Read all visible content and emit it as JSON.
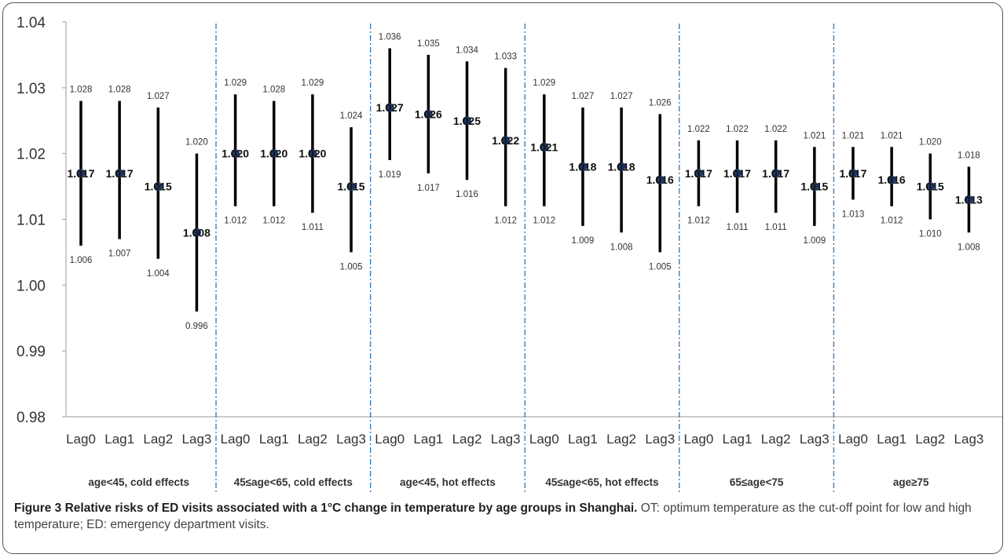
{
  "chart_data": {
    "type": "errorbar",
    "ylim": [
      0.98,
      1.04
    ],
    "yticks": [
      0.98,
      0.99,
      1.0,
      1.01,
      1.02,
      1.03,
      1.04
    ],
    "ytick_labels": [
      "0.98",
      "0.99",
      "1.00",
      "1.01",
      "1.02",
      "1.03",
      "1.04"
    ],
    "groups": [
      {
        "label": "age<45, cold effects",
        "items": [
          {
            "lag": "Lag0",
            "rr": 1.017,
            "lower": 1.006,
            "upper": 1.028,
            "rr_label": "1.017",
            "lower_label": "1.006",
            "upper_label": "1.028"
          },
          {
            "lag": "Lag1",
            "rr": 1.017,
            "lower": 1.007,
            "upper": 1.028,
            "rr_label": "1.017",
            "lower_label": "1.007",
            "upper_label": "1.028"
          },
          {
            "lag": "Lag2",
            "rr": 1.015,
            "lower": 1.004,
            "upper": 1.027,
            "rr_label": "1.015",
            "lower_label": "1.004",
            "upper_label": "1.027"
          },
          {
            "lag": "Lag3",
            "rr": 1.008,
            "lower": 0.996,
            "upper": 1.02,
            "rr_label": "1.008",
            "lower_label": "0.996",
            "upper_label": "1.020"
          }
        ]
      },
      {
        "label": "45≤age<65, cold effects",
        "items": [
          {
            "lag": "Lag0",
            "rr": 1.02,
            "lower": 1.012,
            "upper": 1.029,
            "rr_label": "1.020",
            "lower_label": "1.012",
            "upper_label": "1.029"
          },
          {
            "lag": "Lag1",
            "rr": 1.02,
            "lower": 1.012,
            "upper": 1.028,
            "rr_label": "1.020",
            "lower_label": "1.012",
            "upper_label": "1.028"
          },
          {
            "lag": "Lag2",
            "rr": 1.02,
            "lower": 1.011,
            "upper": 1.029,
            "rr_label": "1.020",
            "lower_label": "1.011",
            "upper_label": "1.029"
          },
          {
            "lag": "Lag3",
            "rr": 1.015,
            "lower": 1.005,
            "upper": 1.024,
            "rr_label": "1.015",
            "lower_label": "1.005",
            "upper_label": "1.024"
          }
        ]
      },
      {
        "label": "age<45, hot effects",
        "items": [
          {
            "lag": "Lag0",
            "rr": 1.027,
            "lower": 1.019,
            "upper": 1.036,
            "rr_label": "1.027",
            "lower_label": "1.019",
            "upper_label": "1.036"
          },
          {
            "lag": "Lag1",
            "rr": 1.026,
            "lower": 1.017,
            "upper": 1.035,
            "rr_label": "1.026",
            "lower_label": "1.017",
            "upper_label": "1.035"
          },
          {
            "lag": "Lag2",
            "rr": 1.025,
            "lower": 1.016,
            "upper": 1.034,
            "rr_label": "1.025",
            "lower_label": "1.016",
            "upper_label": "1.034"
          },
          {
            "lag": "Lag3",
            "rr": 1.022,
            "lower": 1.012,
            "upper": 1.033,
            "rr_label": "1.022",
            "lower_label": "1.012",
            "upper_label": "1.033"
          }
        ]
      },
      {
        "label": "45≤age<65, hot effects",
        "items": [
          {
            "lag": "Lag0",
            "rr": 1.021,
            "lower": 1.012,
            "upper": 1.029,
            "rr_label": "1.021",
            "lower_label": "1.012",
            "upper_label": "1.029"
          },
          {
            "lag": "Lag1",
            "rr": 1.018,
            "lower": 1.009,
            "upper": 1.027,
            "rr_label": "1.018",
            "lower_label": "1.009",
            "upper_label": "1.027"
          },
          {
            "lag": "Lag2",
            "rr": 1.018,
            "lower": 1.008,
            "upper": 1.027,
            "rr_label": "1.018",
            "lower_label": "1.008",
            "upper_label": "1.027"
          },
          {
            "lag": "Lag3",
            "rr": 1.016,
            "lower": 1.005,
            "upper": 1.026,
            "rr_label": "1.016",
            "lower_label": "1.005",
            "upper_label": "1.026"
          }
        ]
      },
      {
        "label": "65≤age<75",
        "items": [
          {
            "lag": "Lag0",
            "rr": 1.017,
            "lower": 1.012,
            "upper": 1.022,
            "rr_label": "1.017",
            "lower_label": "1.012",
            "upper_label": "1.022"
          },
          {
            "lag": "Lag1",
            "rr": 1.017,
            "lower": 1.011,
            "upper": 1.022,
            "rr_label": "1.017",
            "lower_label": "1.011",
            "upper_label": "1.022"
          },
          {
            "lag": "Lag2",
            "rr": 1.017,
            "lower": 1.011,
            "upper": 1.022,
            "rr_label": "1.017",
            "lower_label": "1.011",
            "upper_label": "1.022"
          },
          {
            "lag": "Lag3",
            "rr": 1.015,
            "lower": 1.009,
            "upper": 1.021,
            "rr_label": "1.015",
            "lower_label": "1.009",
            "upper_label": "1.021"
          }
        ]
      },
      {
        "label": "age≥75",
        "items": [
          {
            "lag": "Lag0",
            "rr": 1.017,
            "lower": 1.013,
            "upper": 1.021,
            "rr_label": "1.017",
            "lower_label": "1.013",
            "upper_label": "1.021"
          },
          {
            "lag": "Lag1",
            "rr": 1.016,
            "lower": 1.012,
            "upper": 1.021,
            "rr_label": "1.016",
            "lower_label": "1.012",
            "upper_label": "1.021"
          },
          {
            "lag": "Lag2",
            "rr": 1.015,
            "lower": 1.01,
            "upper": 1.02,
            "rr_label": "1.015",
            "lower_label": "1.010",
            "upper_label": "1.020"
          },
          {
            "lag": "Lag3",
            "rr": 1.013,
            "lower": 1.008,
            "upper": 1.018,
            "rr_label": "1.013",
            "lower_label": "1.008",
            "upper_label": "1.018"
          }
        ]
      }
    ],
    "grid": false,
    "legend": "none",
    "colors": {
      "interval": "#000000",
      "point": "#1f3864",
      "separator": "#2e75b6",
      "axis": "#999999",
      "text": "#333333"
    }
  },
  "caption": {
    "title": "Figure 3 Relative risks of ED visits associated with a 1°C change in temperature by age groups in Shanghai.",
    "text": " OT: optimum temperature as the cut-off point for low and high temperature; ED: emergency department visits."
  }
}
